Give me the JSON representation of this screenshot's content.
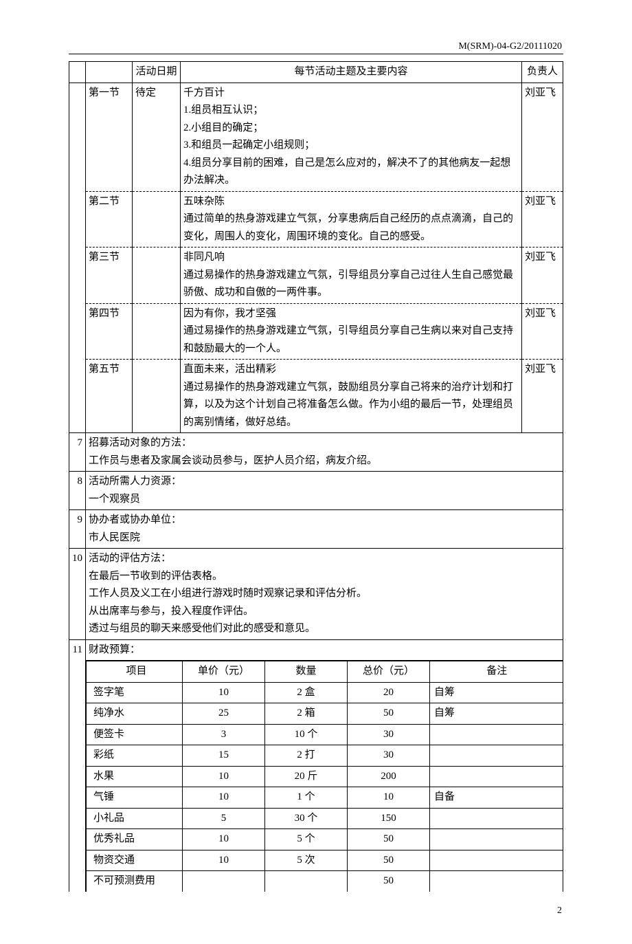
{
  "header_code": "M(SRM)-04-G2/20111020",
  "page_number": "2",
  "schedule_header": {
    "date_col": "活动日期",
    "theme_col": "每节活动主题及主要内容",
    "resp_col": "负责人"
  },
  "sessions": [
    {
      "label": "第一节",
      "date": "待定",
      "title": "千方百计",
      "body": "1.组员相互认识；\n2.小组目的确定；\n3.和组员一起确定小组规则；\n4.组员分享目前的困难，自己是怎么应对的，解决不了的其他病友一起想办法解决。",
      "responsible": "刘亚飞"
    },
    {
      "label": "第二节",
      "date": "",
      "title": "五味杂陈",
      "body": "通过简单的热身游戏建立气氛，分享患病后自己经历的点点滴滴，自己的变化，周围人的变化，周围环境的变化。自己的感受。",
      "responsible": "刘亚飞"
    },
    {
      "label": "第三节",
      "date": "",
      "title": "非同凡响",
      "body": "通过易操作的热身游戏建立气氛，引导组员分享自己过往人生自己感觉最骄傲、成功和自傲的一两件事。",
      "responsible": "刘亚飞"
    },
    {
      "label": "第四节",
      "date": "",
      "title": "因为有你，我才坚强",
      "body": "通过易操作的热身游戏建立气氛，引导组员分享自己生病以来对自己支持和鼓励最大的一个人。",
      "responsible": "刘亚飞"
    },
    {
      "label": "第五节",
      "date": "",
      "title": "直面未来，活出精彩",
      "body": "通过易操作的热身游戏建立气氛，鼓励组员分享自己将来的治疗计划和打算，以及为这个计划自己将准备怎么做。作为小组的最后一节，处理组员的离别情绪，做好总结。",
      "responsible": "刘亚飞"
    }
  ],
  "rows": {
    "r7": {
      "num": "7",
      "title": "招募活动对象的方法：",
      "body": "工作员与患者及家属会谈动员参与，医护人员介绍，病友介绍。"
    },
    "r8": {
      "num": "8",
      "title": "活动所需人力资源：",
      "body": "一个观察员"
    },
    "r9": {
      "num": "9",
      "title": "协办者或协办单位：",
      "body": "市人民医院"
    },
    "r10": {
      "num": "10",
      "title": "活动的评估方法：",
      "body": "在最后一节收到的评估表格。\n工作人员及义工在小组进行游戏时随时观察记录和评估分析。\n从出席率与参与，投入程度作评估。\n透过与组员的聊天来感受他们对此的感受和意见。"
    },
    "r11": {
      "num": "11",
      "title": "财政预算："
    }
  },
  "budget": {
    "headers": {
      "item": "项目",
      "price": "单价（元）",
      "qty": "数量",
      "total": "总价（元）",
      "note": "备注"
    },
    "rows": [
      {
        "item": "签字笔",
        "price": "10",
        "qty": "2 盒",
        "total": "20",
        "note": "自筹"
      },
      {
        "item": "纯净水",
        "price": "25",
        "qty": "2 箱",
        "total": "50",
        "note": "自筹"
      },
      {
        "item": "便签卡",
        "price": "3",
        "qty": "10 个",
        "total": "30",
        "note": ""
      },
      {
        "item": "彩纸",
        "price": "15",
        "qty": "2 打",
        "total": "30",
        "note": ""
      },
      {
        "item": "水果",
        "price": "10",
        "qty": "20 斤",
        "total": "200",
        "note": ""
      },
      {
        "item": "气锤",
        "price": "10",
        "qty": "1 个",
        "total": "10",
        "note": "自备"
      },
      {
        "item": "小礼品",
        "price": "5",
        "qty": "30 个",
        "total": "150",
        "note": ""
      },
      {
        "item": "优秀礼品",
        "price": "10",
        "qty": "5 个",
        "total": "50",
        "note": ""
      },
      {
        "item": "物资交通",
        "price": "10",
        "qty": "5 次",
        "total": "50",
        "note": ""
      },
      {
        "item": "不可预测费用",
        "price": "",
        "qty": "",
        "total": "50",
        "note": ""
      }
    ]
  }
}
